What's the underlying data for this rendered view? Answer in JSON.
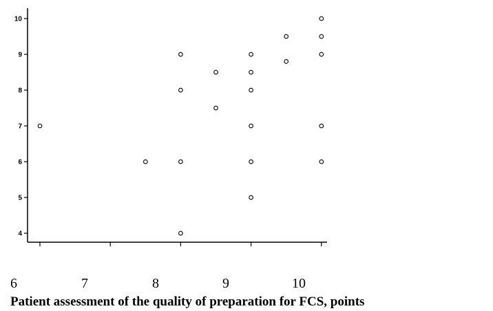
{
  "chart_data": {
    "type": "scatter",
    "title": "",
    "xlabel": "Patient assessment of the quality of preparation for FCS, points",
    "ylabel": "",
    "xlim": [
      6,
      10
    ],
    "ylim": [
      4,
      10
    ],
    "x_ticks": [
      "6",
      "7",
      "8",
      "9",
      "10"
    ],
    "y_ticks": [
      "4",
      "5",
      "6",
      "7",
      "8",
      "9",
      "10"
    ],
    "grid": false,
    "series": [
      {
        "points": [
          {
            "x": 6,
            "y": 7
          },
          {
            "x": 7.5,
            "y": 6
          },
          {
            "x": 8,
            "y": 9
          },
          {
            "x": 8,
            "y": 8
          },
          {
            "x": 8,
            "y": 6
          },
          {
            "x": 8,
            "y": 4
          },
          {
            "x": 8.5,
            "y": 8.5
          },
          {
            "x": 8.5,
            "y": 7.5
          },
          {
            "x": 9,
            "y": 9
          },
          {
            "x": 9,
            "y": 8.5
          },
          {
            "x": 9,
            "y": 8
          },
          {
            "x": 9,
            "y": 7
          },
          {
            "x": 9,
            "y": 6
          },
          {
            "x": 9,
            "y": 5
          },
          {
            "x": 9.5,
            "y": 9.5
          },
          {
            "x": 9.5,
            "y": 8.8
          },
          {
            "x": 10,
            "y": 10
          },
          {
            "x": 10,
            "y": 9.5
          },
          {
            "x": 10,
            "y": 9
          },
          {
            "x": 10,
            "y": 7
          },
          {
            "x": 10,
            "y": 6
          }
        ]
      }
    ]
  }
}
